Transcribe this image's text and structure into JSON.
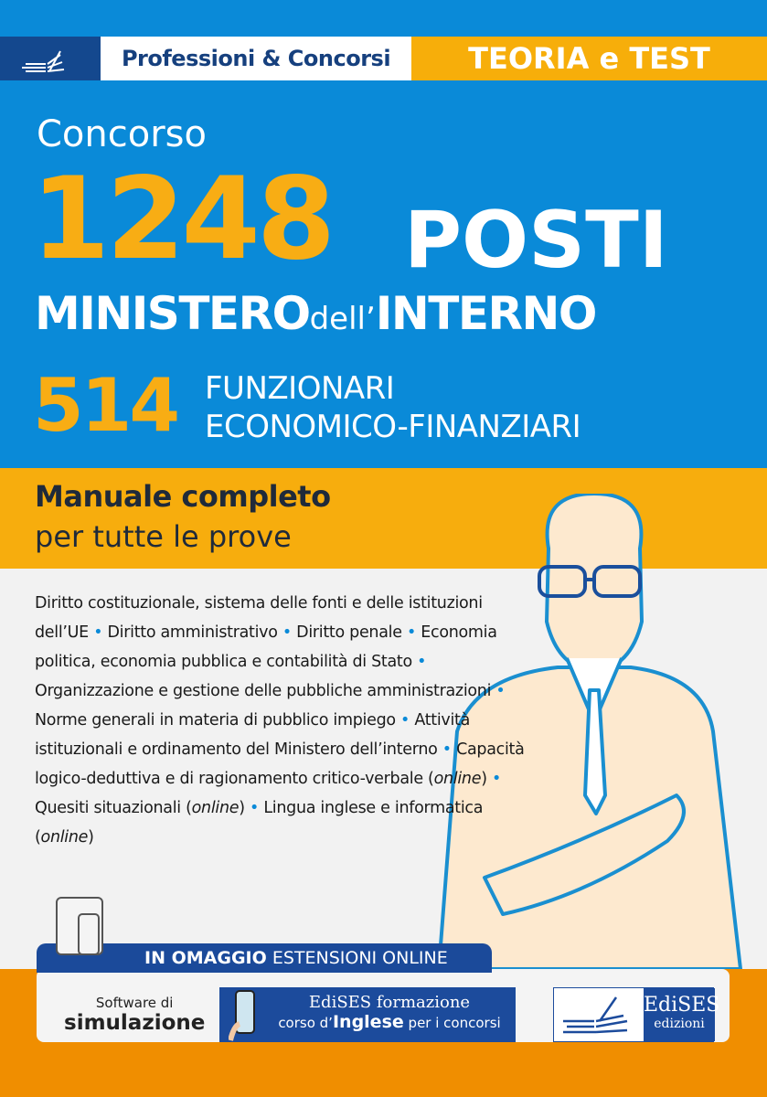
{
  "header": {
    "series": "Professioni & Concorsi",
    "type": "TEORIA e TEST"
  },
  "title": {
    "concorso": "Concorso",
    "number": "1248",
    "posti": "POSTI",
    "ministero": "MINISTERO",
    "dell": "dell’",
    "interno": "INTERNO",
    "count": "514",
    "role_line1": "FUNZIONARI",
    "role_line2": "ECONOMICO-FINANZIARI"
  },
  "subtitle": {
    "line1": "Manuale completo",
    "line2": "per tutte le prove"
  },
  "topics": [
    "Diritto costituzionale, sistema delle fonti e delle istituzioni dell’UE",
    "Diritto amministrativo",
    "Diritto penale",
    "Economia politica, economia pubblica e contabilità di Stato",
    "Organizzazione e gestione delle pubbliche amministrazioni",
    "Norme generali in materia di pubblico impiego",
    "Attività istituzionali e ordinamento del Ministero dell’interno",
    "Capacità logico-deduttiva e di ragionamento critico-verbale (online)",
    "Quesiti situazionali (online)",
    "Lingua inglese e informatica (online)"
  ],
  "omaggio": {
    "bold": "IN OMAGGIO",
    "rest": "ESTENSIONI ONLINE"
  },
  "software": {
    "line1": "Software di",
    "line2": "simulazione"
  },
  "banner": {
    "line1": "EdiSES formazione",
    "pre": "corso d’",
    "bold": "Inglese",
    "post": "per i concorsi"
  },
  "publisher": {
    "name": "EdiSES",
    "sub": "edizioni"
  },
  "colors": {
    "blue": "#0a8ad8",
    "orange": "#f7ad0d",
    "navy": "#1c4b9c"
  }
}
